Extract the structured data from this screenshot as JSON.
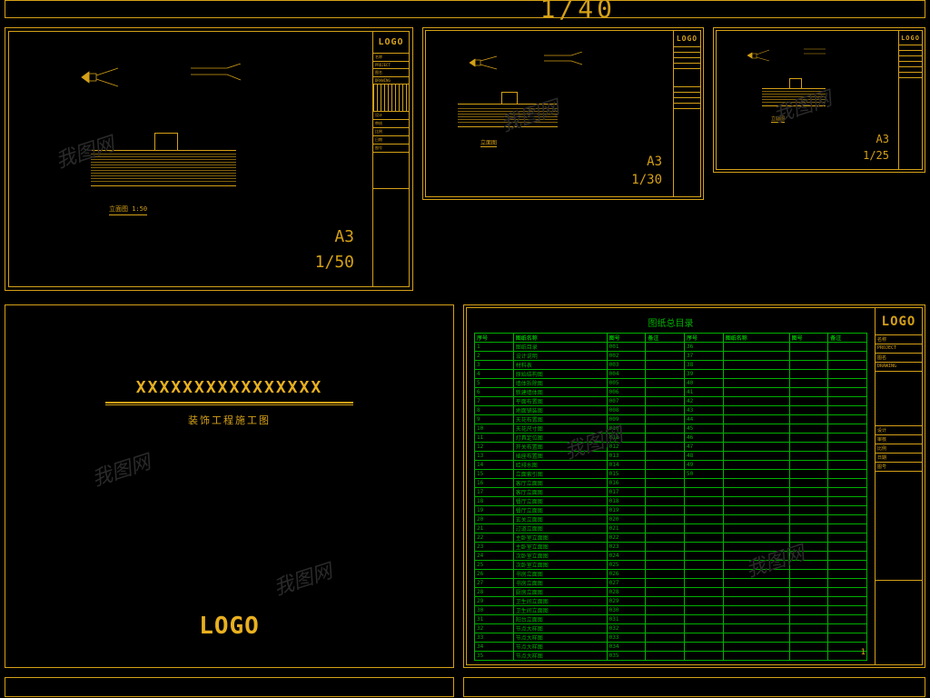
{
  "colors": {
    "cad_line": "#d4a017",
    "cad_bright": "#e8b020",
    "green": "#00b000",
    "bg": "#000000",
    "watermark": "#2a2a2a"
  },
  "watermark_text": "我图网",
  "top_bar": {
    "scale_frag": "1/40"
  },
  "frames": {
    "f1": {
      "paper": "A3",
      "scale": "1/50",
      "logo": "LOGO",
      "caption": "立面图 1:50"
    },
    "f2": {
      "paper": "A3",
      "scale": "1/30",
      "logo": "LOGO",
      "caption": "立面图"
    },
    "f3": {
      "paper": "A3",
      "scale": "1/25",
      "logo": "LOGO",
      "caption": "立面图"
    },
    "cover": {
      "title": "XXXXXXXXXXXXXXXX",
      "subtitle": "装饰工程施工图",
      "logo": "LOGO"
    },
    "index": {
      "title": "图纸总目录",
      "logo": "LOGO",
      "headers": [
        "序号",
        "图纸名称",
        "图号",
        "备注",
        "序号",
        "图纸名称",
        "图号",
        "备注"
      ],
      "rows": [
        [
          "1",
          "图纸目录",
          "001",
          "",
          "36",
          "",
          "",
          ""
        ],
        [
          "2",
          "设计说明",
          "002",
          "",
          "37",
          "",
          "",
          ""
        ],
        [
          "3",
          "材料表",
          "003",
          "",
          "38",
          "",
          "",
          ""
        ],
        [
          "4",
          "原始结构图",
          "004",
          "",
          "39",
          "",
          "",
          ""
        ],
        [
          "5",
          "墙体拆除图",
          "005",
          "",
          "40",
          "",
          "",
          ""
        ],
        [
          "6",
          "新建墙体图",
          "006",
          "",
          "41",
          "",
          "",
          ""
        ],
        [
          "7",
          "平面布置图",
          "007",
          "",
          "42",
          "",
          "",
          ""
        ],
        [
          "8",
          "地面铺装图",
          "008",
          "",
          "43",
          "",
          "",
          ""
        ],
        [
          "9",
          "天花布置图",
          "009",
          "",
          "44",
          "",
          "",
          ""
        ],
        [
          "10",
          "天花尺寸图",
          "010",
          "",
          "45",
          "",
          "",
          ""
        ],
        [
          "11",
          "灯具定位图",
          "011",
          "",
          "46",
          "",
          "",
          ""
        ],
        [
          "12",
          "开关布置图",
          "012",
          "",
          "47",
          "",
          "",
          ""
        ],
        [
          "13",
          "插座布置图",
          "013",
          "",
          "48",
          "",
          "",
          ""
        ],
        [
          "14",
          "给排水图",
          "014",
          "",
          "49",
          "",
          "",
          ""
        ],
        [
          "15",
          "立面索引图",
          "015",
          "",
          "50",
          "",
          "",
          ""
        ],
        [
          "16",
          "客厅立面图",
          "016",
          "",
          "",
          "",
          "",
          ""
        ],
        [
          "17",
          "客厅立面图",
          "017",
          "",
          "",
          "",
          "",
          ""
        ],
        [
          "18",
          "餐厅立面图",
          "018",
          "",
          "",
          "",
          "",
          ""
        ],
        [
          "19",
          "餐厅立面图",
          "019",
          "",
          "",
          "",
          "",
          ""
        ],
        [
          "20",
          "玄关立面图",
          "020",
          "",
          "",
          "",
          "",
          ""
        ],
        [
          "21",
          "过道立面图",
          "021",
          "",
          "",
          "",
          "",
          ""
        ],
        [
          "22",
          "主卧室立面图",
          "022",
          "",
          "",
          "",
          "",
          ""
        ],
        [
          "23",
          "主卧室立面图",
          "023",
          "",
          "",
          "",
          "",
          ""
        ],
        [
          "24",
          "次卧室立面图",
          "024",
          "",
          "",
          "",
          "",
          ""
        ],
        [
          "25",
          "次卧室立面图",
          "025",
          "",
          "",
          "",
          "",
          ""
        ],
        [
          "26",
          "书房立面图",
          "026",
          "",
          "",
          "",
          "",
          ""
        ],
        [
          "27",
          "书房立面图",
          "027",
          "",
          "",
          "",
          "",
          ""
        ],
        [
          "28",
          "厨房立面图",
          "028",
          "",
          "",
          "",
          "",
          ""
        ],
        [
          "29",
          "卫生间立面图",
          "029",
          "",
          "",
          "",
          "",
          ""
        ],
        [
          "30",
          "卫生间立面图",
          "030",
          "",
          "",
          "",
          "",
          ""
        ],
        [
          "31",
          "阳台立面图",
          "031",
          "",
          "",
          "",
          "",
          ""
        ],
        [
          "32",
          "节点大样图",
          "032",
          "",
          "",
          "",
          "",
          ""
        ],
        [
          "33",
          "节点大样图",
          "033",
          "",
          "",
          "",
          "",
          ""
        ],
        [
          "34",
          "节点大样图",
          "034",
          "",
          "",
          "",
          "",
          ""
        ],
        [
          "35",
          "节点大样图",
          "035",
          "",
          "",
          "",
          "",
          ""
        ]
      ],
      "page_no": "1"
    }
  },
  "titleblock_labels": [
    "名称",
    "PROJECT",
    "图名",
    "DRAWING",
    "设计",
    "审核",
    "比例",
    "日期",
    "图号"
  ]
}
